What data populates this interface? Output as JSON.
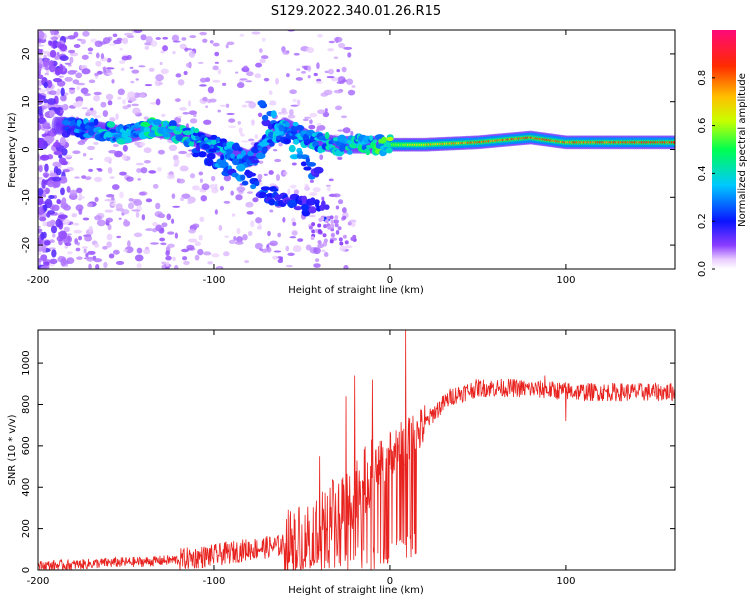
{
  "title": "S129.2022.340.01.26.R15",
  "colors": {
    "snr_line": "#e8231f",
    "frame": "#000000",
    "background": "#ffffff"
  },
  "chart_data": [
    {
      "type": "heatmap",
      "title": "S129.2022.340.01.26.R15",
      "xlabel": "Height of straight line (km)",
      "ylabel": "Frequency (Hz)",
      "xlim": [
        -200,
        162
      ],
      "ylim": [
        -25,
        25
      ],
      "x_ticks": [
        -200,
        -100,
        0,
        100
      ],
      "y_ticks": [
        -20,
        -10,
        0,
        10,
        20
      ],
      "colorbar": {
        "label": "Normalized spectral amplitude",
        "range": [
          0,
          1
        ],
        "ticks": [
          "0.0",
          "0.2",
          "0.4",
          "0.6",
          "0.8"
        ],
        "colormap": "rainbow: white, violet, blue, cyan, green, yellow, red, magenta"
      },
      "description_of_features": {
        "main_track": [
          {
            "x": -185,
            "y": 5,
            "v": 0.25
          },
          {
            "x": -165,
            "y": 4,
            "v": 0.35
          },
          {
            "x": -150,
            "y": 3,
            "v": 0.4
          },
          {
            "x": -135,
            "y": 4.5,
            "v": 0.45
          },
          {
            "x": -120,
            "y": 3.5,
            "v": 0.4
          },
          {
            "x": -100,
            "y": 1,
            "v": 0.35
          },
          {
            "x": -80,
            "y": -2,
            "v": 0.3
          },
          {
            "x": -60,
            "y": 5,
            "v": 0.35
          },
          {
            "x": -45,
            "y": 2,
            "v": 0.35
          },
          {
            "x": -30,
            "y": 1,
            "v": 0.4
          },
          {
            "x": -10,
            "y": 1,
            "v": 0.45
          },
          {
            "x": 0,
            "y": 1,
            "v": 0.55
          },
          {
            "x": 20,
            "y": 1,
            "v": 0.75
          },
          {
            "x": 50,
            "y": 1.5,
            "v": 0.85
          },
          {
            "x": 80,
            "y": 2.5,
            "v": 0.9
          },
          {
            "x": 100,
            "y": 1.5,
            "v": 0.85
          },
          {
            "x": 130,
            "y": 1.5,
            "v": 0.9
          },
          {
            "x": 160,
            "y": 1.5,
            "v": 0.9
          }
        ],
        "descending_branch": [
          {
            "x": -110,
            "y": 0,
            "v": 0.3
          },
          {
            "x": -95,
            "y": -3,
            "v": 0.3
          },
          {
            "x": -85,
            "y": -5,
            "v": 0.3
          },
          {
            "x": -75,
            "y": -8,
            "v": 0.25
          },
          {
            "x": -65,
            "y": -10,
            "v": 0.25
          },
          {
            "x": -50,
            "y": -12,
            "v": 0.2
          },
          {
            "x": -35,
            "y": -13,
            "v": 0.2
          }
        ]
      }
    },
    {
      "type": "line",
      "xlabel": "Height of straight line (km)",
      "ylabel": "SNR (10 * v/v)",
      "xlim": [
        -200,
        162
      ],
      "ylim": [
        0,
        1160
      ],
      "x_ticks": [
        -200,
        -100,
        0,
        100
      ],
      "y_ticks": [
        0,
        200,
        400,
        600,
        800,
        1000
      ],
      "series": [
        {
          "trend": [
            {
              "x": -200,
              "y": 20
            },
            {
              "x": -180,
              "y": 25
            },
            {
              "x": -160,
              "y": 35
            },
            {
              "x": -140,
              "y": 40
            },
            {
              "x": -120,
              "y": 50
            },
            {
              "x": -100,
              "y": 70
            },
            {
              "x": -80,
              "y": 100
            },
            {
              "x": -60,
              "y": 120
            },
            {
              "x": -45,
              "y": 180
            },
            {
              "x": -35,
              "y": 250
            },
            {
              "x": -25,
              "y": 330
            },
            {
              "x": -15,
              "y": 420
            },
            {
              "x": -5,
              "y": 520
            },
            {
              "x": 5,
              "y": 600
            },
            {
              "x": 15,
              "y": 650
            },
            {
              "x": 25,
              "y": 760
            },
            {
              "x": 35,
              "y": 840
            },
            {
              "x": 50,
              "y": 880
            },
            {
              "x": 70,
              "y": 880
            },
            {
              "x": 90,
              "y": 870
            },
            {
              "x": 110,
              "y": 860
            },
            {
              "x": 130,
              "y": 860
            },
            {
              "x": 162,
              "y": 860
            }
          ],
          "spikes": [
            {
              "x": -40,
              "y": 550
            },
            {
              "x": -25,
              "y": 840
            },
            {
              "x": -20,
              "y": 940
            },
            {
              "x": -10,
              "y": 920
            },
            {
              "x": 9,
              "y": 1160
            },
            {
              "x": 10,
              "y": 160
            },
            {
              "x": 88,
              "y": 940
            },
            {
              "x": 100,
              "y": 720
            }
          ],
          "noise": [
            {
              "x_from": -200,
              "x_to": -120,
              "amplitude": 25
            },
            {
              "x_from": -120,
              "x_to": -60,
              "amplitude": 55
            },
            {
              "x_from": -60,
              "x_to": -10,
              "amplitude": 170
            },
            {
              "x_from": -10,
              "x_to": 20,
              "amplitude": 110
            },
            {
              "x_from": 20,
              "x_to": 162,
              "amplitude": 45
            }
          ]
        }
      ]
    }
  ]
}
